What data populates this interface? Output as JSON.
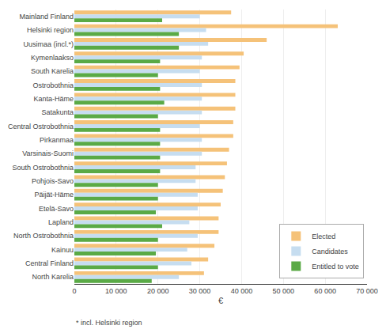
{
  "chart_data": {
    "type": "bar",
    "orientation": "horizontal",
    "categories": [
      "Mainland Finland",
      "Helsinki region",
      "Uusimaa (incl.*)",
      "Kymenlaakso",
      "South Karelia",
      "Ostrobothnia",
      "Kanta-Häme",
      "Satakunta",
      "Central Ostrobothnia",
      "Pirkanmaa",
      "Varsinais-Suomi",
      "South Ostrobothnia",
      "Pohjois-Savo",
      "Päijät-Häme",
      "Etelä-Savo",
      "Lapland",
      "North Ostrobothnia",
      "Kainuu",
      "Central Finland",
      "North Karelia"
    ],
    "series": [
      {
        "name": "Elected",
        "color": "#f5c279",
        "values": [
          37500,
          63000,
          46000,
          40500,
          39500,
          38500,
          38500,
          38500,
          38000,
          38000,
          37000,
          36500,
          36000,
          35500,
          35000,
          34500,
          34500,
          33500,
          32000,
          31000
        ]
      },
      {
        "name": "Candidates",
        "color": "#c6ddf0",
        "values": [
          30000,
          31500,
          32000,
          30500,
          30000,
          30500,
          30500,
          30500,
          30000,
          30500,
          30500,
          29000,
          29000,
          29500,
          29500,
          27500,
          29500,
          27000,
          28000,
          25000
        ]
      },
      {
        "name": "Entitled to vote",
        "color": "#5aaa46",
        "values": [
          21000,
          25000,
          25000,
          20500,
          20000,
          20500,
          21500,
          20000,
          20500,
          20500,
          20500,
          20500,
          20000,
          20000,
          19500,
          21000,
          20000,
          19500,
          20000,
          18500
        ]
      }
    ],
    "xlabel": "€",
    "annotations": [
      "* incl. Helsinki region"
    ],
    "xlim": [
      0,
      70000
    ],
    "xticks": [
      0,
      {
        "value": 10000,
        "label": "10 000"
      },
      {
        "value": 20000,
        "label": "20 000"
      },
      {
        "value": 30000,
        "label": "30 000"
      },
      {
        "value": 40000,
        "label": "40 000"
      },
      {
        "value": 50000,
        "label": "50 000"
      },
      {
        "value": 60000,
        "label": "60 000"
      },
      {
        "value": 70000,
        "label": "70 000"
      }
    ],
    "grid": true,
    "legend": "lower right"
  }
}
